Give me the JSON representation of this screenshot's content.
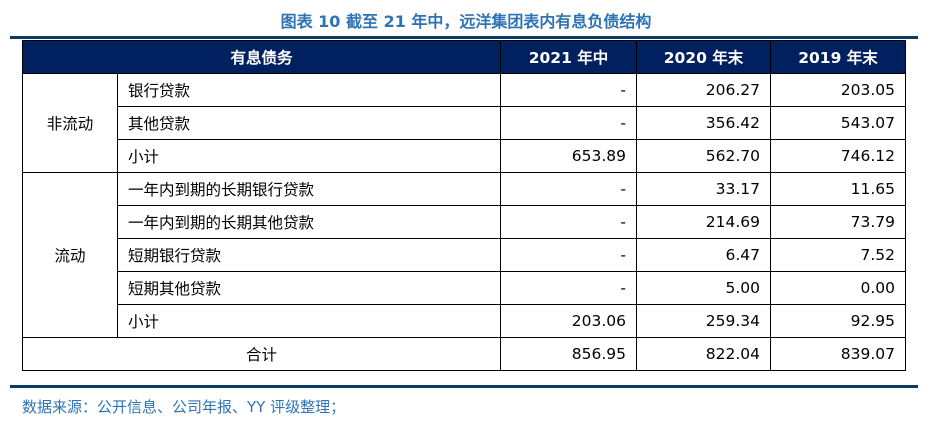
{
  "title": "图表 10 截至 21 年中，远洋集团表内有息负债结构",
  "header": [
    "有息债务",
    "2021 年中",
    "2020 年末",
    "2019 年末"
  ],
  "groups": [
    {
      "name": "非流动",
      "rows": [
        {
          "label": "银行贷款",
          "v": [
            "-",
            "206.27",
            "203.05"
          ]
        },
        {
          "label": "其他贷款",
          "v": [
            "-",
            "356.42",
            "543.07"
          ]
        },
        {
          "label": "小计",
          "v": [
            "653.89",
            "562.70",
            "746.12"
          ]
        }
      ]
    },
    {
      "name": "流动",
      "rows": [
        {
          "label": "一年内到期的长期银行贷款",
          "v": [
            "-",
            "33.17",
            "11.65"
          ]
        },
        {
          "label": "一年内到期的长期其他贷款",
          "v": [
            "-",
            "214.69",
            "73.79"
          ]
        },
        {
          "label": "短期银行贷款",
          "v": [
            "-",
            "6.47",
            "7.52"
          ]
        },
        {
          "label": "短期其他贷款",
          "v": [
            "-",
            "5.00",
            "0.00"
          ]
        },
        {
          "label": "小计",
          "v": [
            "203.06",
            "259.34",
            "92.95"
          ]
        }
      ]
    }
  ],
  "total": {
    "label": "合计",
    "v": [
      "856.95",
      "822.04",
      "839.07"
    ]
  },
  "source": "数据来源：公开信息、公司年报、YY 评级整理；"
}
